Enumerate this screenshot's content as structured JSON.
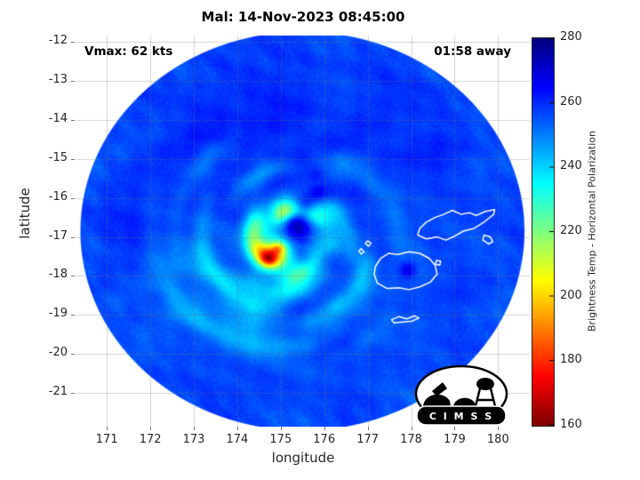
{
  "title": "Mal: 14-Nov-2023 08:45:00",
  "annotations": {
    "vmax": "Vmax: 62 kts",
    "eta": "01:58 away"
  },
  "axes": {
    "xlabel": "longitude",
    "ylabel": "latitude"
  },
  "logo": {
    "text": "C I M S S"
  },
  "chart_data": {
    "type": "heatmap",
    "title": "Mal: 14-Nov-2023 08:45:00",
    "xlabel": "longitude",
    "ylabel": "latitude",
    "grid": true,
    "view": {
      "lon_min": 170.28,
      "lon_max": 180.75,
      "lat_min": -21.86,
      "lat_max": -11.84
    },
    "x_ticks": [
      171,
      172,
      173,
      174,
      175,
      176,
      177,
      178,
      179,
      180
    ],
    "y_ticks": [
      -12,
      -13,
      -14,
      -15,
      -16,
      -17,
      -18,
      -19,
      -20,
      -21
    ],
    "colorbar": {
      "label": "Brightness Temp - Horizontal Polarization",
      "ticks": [
        280,
        260,
        240,
        220,
        200,
        180,
        160
      ],
      "min": 160,
      "max": 280,
      "colormap": "jet-reversed"
    },
    "swath": {
      "lon": 175.5,
      "lat": -16.85,
      "r": 5.12
    },
    "storm": {
      "name": "Mal",
      "lon": 175.2,
      "lat": -17.15,
      "vmax_kts": 62
    },
    "base_temp": 257.2,
    "features": [
      {
        "lon": 175.48,
        "lat": -16.72,
        "s": 0.26,
        "dT": 19
      },
      {
        "lon": 175.3,
        "lat": -16.55,
        "s": 0.18,
        "dT": 10
      },
      {
        "lon": 175.58,
        "lat": -16.2,
        "s": 0.15,
        "dT": 10
      },
      {
        "lon": 175.85,
        "lat": -15.9,
        "s": 0.15,
        "dT": 9
      },
      {
        "lon": 175.8,
        "lat": -15.4,
        "s": 0.15,
        "dT": 7
      },
      {
        "lon": 174.82,
        "lat": -17.42,
        "s": 0.3,
        "dT": -48
      },
      {
        "lon": 174.72,
        "lat": -17.56,
        "s": 0.14,
        "dT": -32
      },
      {
        "lon": 174.95,
        "lat": -17.3,
        "s": 0.12,
        "dT": -24
      },
      {
        "lon": 175.05,
        "lat": -16.28,
        "s": 0.24,
        "dT": -26
      },
      {
        "lon": 174.5,
        "lat": -16.7,
        "s": 0.25,
        "dT": -20
      },
      {
        "lon": 175.88,
        "lat": -16.55,
        "s": 0.28,
        "dT": -18
      },
      {
        "lon": 175.38,
        "lat": -18.02,
        "s": 0.3,
        "dT": -16
      },
      {
        "lon": 176.12,
        "lat": -17.2,
        "s": 0.2,
        "dT": -12
      },
      {
        "lon": 177.92,
        "lat": -17.85,
        "s": 0.14,
        "dT": 14
      },
      {
        "lon": 173.6,
        "lat": -18.6,
        "s": 0.8,
        "dT": -6
      },
      {
        "lon": 174.4,
        "lat": -19.25,
        "s": 0.45,
        "dT": -8
      },
      {
        "lon": 172.9,
        "lat": -17.5,
        "s": 0.5,
        "dT": -5
      },
      {
        "lon": 174.0,
        "lat": -14.2,
        "s": 1.2,
        "dT": 4
      },
      {
        "lon": 177.8,
        "lat": -14.5,
        "s": 1.1,
        "dT": 3
      },
      {
        "lon": 171.9,
        "lat": -16.5,
        "s": 0.9,
        "dT": 3
      }
    ],
    "arcs": [
      {
        "lon": 175.2,
        "lat": -17.1,
        "r": 0.78,
        "s": 0.22,
        "a0": -180,
        "a1": 180,
        "dT": -18,
        "wdir": 180,
        "wamt": 0.45
      },
      {
        "lon": 175.2,
        "lat": -17.1,
        "r": 1.35,
        "s": 0.2,
        "a0": 230,
        "a1": 400,
        "dT": -9,
        "wdir": 0,
        "wamt": 0
      },
      {
        "lon": 175.2,
        "lat": -17.1,
        "r": 1.9,
        "s": 0.22,
        "a0": 110,
        "a1": 330,
        "dT": -12,
        "wdir": 0,
        "wamt": 0
      },
      {
        "lon": 175.2,
        "lat": -17.1,
        "r": 2.9,
        "s": 0.25,
        "a0": 140,
        "a1": 300,
        "dT": -8,
        "wdir": 0,
        "wamt": 0
      },
      {
        "lon": 175.2,
        "lat": -17.1,
        "r": 2.4,
        "s": 0.28,
        "a0": -50,
        "a1": 60,
        "dT": -6,
        "wdir": 0,
        "wamt": 0
      }
    ],
    "coastlines": [
      {
        "closed": true,
        "points": [
          [
            177.15,
            -17.95
          ],
          [
            177.22,
            -18.18
          ],
          [
            177.45,
            -18.32
          ],
          [
            177.72,
            -18.3
          ],
          [
            177.95,
            -18.35
          ],
          [
            178.2,
            -18.28
          ],
          [
            178.45,
            -18.15
          ],
          [
            178.6,
            -17.95
          ],
          [
            178.55,
            -17.72
          ],
          [
            178.42,
            -17.55
          ],
          [
            178.2,
            -17.42
          ],
          [
            177.95,
            -17.38
          ],
          [
            177.7,
            -17.45
          ],
          [
            177.48,
            -17.42
          ],
          [
            177.3,
            -17.55
          ],
          [
            177.18,
            -17.75
          ]
        ]
      },
      {
        "closed": true,
        "points": [
          [
            178.15,
            -16.95
          ],
          [
            178.35,
            -17.05
          ],
          [
            178.6,
            -17.0
          ],
          [
            178.8,
            -17.08
          ],
          [
            179.0,
            -16.98
          ],
          [
            179.2,
            -16.85
          ],
          [
            179.45,
            -16.78
          ],
          [
            179.7,
            -16.6
          ],
          [
            179.9,
            -16.42
          ],
          [
            179.92,
            -16.3
          ],
          [
            179.7,
            -16.35
          ],
          [
            179.5,
            -16.45
          ],
          [
            179.35,
            -16.38
          ],
          [
            179.15,
            -16.42
          ],
          [
            178.95,
            -16.32
          ],
          [
            178.75,
            -16.42
          ],
          [
            178.55,
            -16.5
          ],
          [
            178.35,
            -16.62
          ],
          [
            178.2,
            -16.78
          ]
        ]
      },
      {
        "closed": true,
        "points": [
          [
            179.68,
            -16.95
          ],
          [
            179.82,
            -17.0
          ],
          [
            179.88,
            -17.12
          ],
          [
            179.78,
            -17.18
          ],
          [
            179.65,
            -17.08
          ]
        ]
      },
      {
        "closed": true,
        "points": [
          [
            178.58,
            -17.6
          ],
          [
            178.68,
            -17.62
          ],
          [
            178.66,
            -17.72
          ],
          [
            178.56,
            -17.7
          ]
        ]
      },
      {
        "closed": true,
        "points": [
          [
            177.55,
            -19.12
          ],
          [
            177.72,
            -19.04
          ],
          [
            177.9,
            -19.1
          ],
          [
            178.08,
            -19.02
          ],
          [
            178.18,
            -19.08
          ],
          [
            178.0,
            -19.16
          ],
          [
            177.8,
            -19.18
          ],
          [
            177.6,
            -19.2
          ]
        ]
      },
      {
        "closed": true,
        "points": [
          [
            177.0,
            -17.1
          ],
          [
            177.08,
            -17.16
          ],
          [
            177.02,
            -17.24
          ],
          [
            176.95,
            -17.16
          ]
        ]
      },
      {
        "closed": true,
        "points": [
          [
            176.85,
            -17.3
          ],
          [
            176.92,
            -17.38
          ],
          [
            176.85,
            -17.44
          ],
          [
            176.8,
            -17.36
          ]
        ]
      }
    ]
  }
}
